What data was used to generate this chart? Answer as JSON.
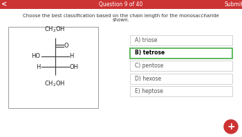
{
  "title_bar_color": "#cc3333",
  "title_bar_text": "Question 9 of 40",
  "submit_text": "Submit",
  "bg_color": "#ffffff",
  "question_text_line1": "Choose the best classification based on the chain length for the monosaccharide",
  "question_text_line2": "shown.",
  "options": [
    {
      "label": "A) triose",
      "selected": false
    },
    {
      "label": "B) tetrose",
      "selected": true
    },
    {
      "label": "C) pentose",
      "selected": false
    },
    {
      "label": "D) hexose",
      "selected": false
    },
    {
      "label": "E) heptose",
      "selected": false
    }
  ],
  "option_border_normal": "#cccccc",
  "option_border_selected": "#5cb85c",
  "option_bg_normal": "#ffffff",
  "option_bg_selected": "#ffffff",
  "option_text_normal_color": "#555555",
  "option_text_selected_color": "#000000",
  "nav_button_color": "#cc3333",
  "back_arrow": "<",
  "molecule_box_border": "#999999",
  "molecule_box_bg": "#ffffff",
  "mol_line_color": "#333333",
  "mol_text_color": "#222222"
}
